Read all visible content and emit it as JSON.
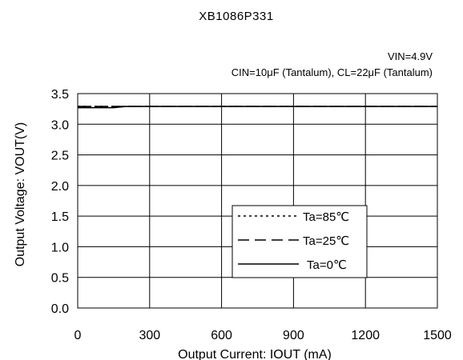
{
  "chart_data": {
    "type": "line",
    "title": "XB1086P331",
    "conditions": [
      "VIN=4.9V",
      "CIN=10μF (Tantalum), CL=22μF (Tantalum)"
    ],
    "xlabel": "Output Current: IOUT (mA)",
    "ylabel": "Output Voltage: VOUT(V)",
    "xlim": [
      0,
      1500
    ],
    "ylim": [
      0,
      3.5
    ],
    "xticks": [
      0,
      300,
      600,
      900,
      1200,
      1500
    ],
    "xtick_labels": [
      "0",
      "300",
      "600",
      "900",
      "1200",
      "1500"
    ],
    "yticks": [
      0,
      0.5,
      1.0,
      1.5,
      2.0,
      2.5,
      3.0,
      3.5
    ],
    "ytick_labels": [
      "0.0",
      "0.5",
      "1.0",
      "1.5",
      "2.0",
      "2.5",
      "3.0",
      "3.5"
    ],
    "grid": true,
    "legend_position": "lower-right",
    "series": [
      {
        "name": "Ta=85℃",
        "style": "dotted",
        "points": [
          [
            0,
            3.29
          ],
          [
            100,
            3.29
          ],
          [
            300,
            3.29
          ],
          [
            600,
            3.29
          ],
          [
            900,
            3.29
          ],
          [
            1200,
            3.29
          ],
          [
            1500,
            3.29
          ]
        ]
      },
      {
        "name": "Ta=25℃",
        "style": "dashed",
        "points": [
          [
            0,
            3.29
          ],
          [
            100,
            3.29
          ],
          [
            300,
            3.29
          ],
          [
            600,
            3.29
          ],
          [
            900,
            3.29
          ],
          [
            1200,
            3.29
          ],
          [
            1500,
            3.29
          ]
        ]
      },
      {
        "name": "Ta=0℃",
        "style": "solid",
        "points": [
          [
            0,
            3.27
          ],
          [
            150,
            3.27
          ],
          [
            200,
            3.29
          ],
          [
            300,
            3.29
          ],
          [
            600,
            3.29
          ],
          [
            900,
            3.29
          ],
          [
            1200,
            3.29
          ],
          [
            1500,
            3.29
          ]
        ]
      }
    ]
  }
}
